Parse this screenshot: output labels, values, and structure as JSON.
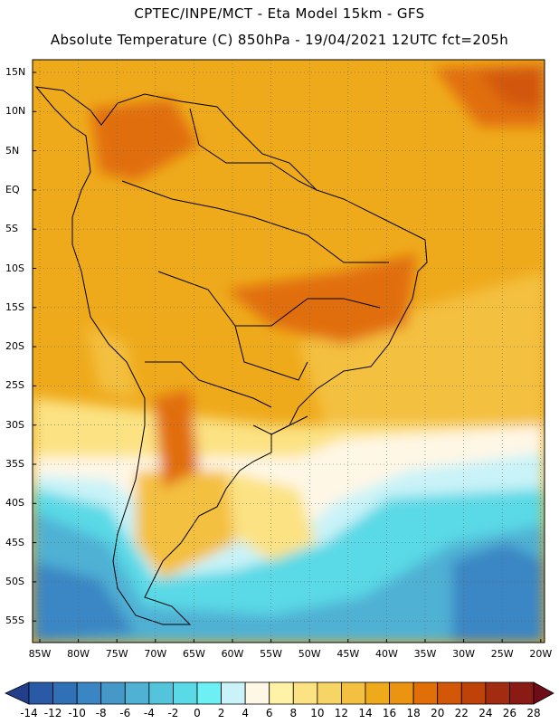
{
  "header": {
    "line1": "CPTEC/INPE/MCT -  Eta Model 15km - GFS",
    "line2": "Absolute Temperature (C) 850hPa - 19/04/2021 12UTC fct=205h"
  },
  "axes": {
    "lat_labels": [
      "15N",
      "10N",
      "5N",
      "EQ",
      "5S",
      "10S",
      "15S",
      "20S",
      "25S",
      "30S",
      "35S",
      "40S",
      "45S",
      "50S",
      "55S"
    ],
    "lon_labels": [
      "85W",
      "80W",
      "75W",
      "70W",
      "65W",
      "60W",
      "55W",
      "50W",
      "45W",
      "40W",
      "35W",
      "30W",
      "25W",
      "20W"
    ]
  },
  "colorbar": {
    "labels": [
      "-14",
      "-12",
      "-10",
      "-8",
      "-6",
      "-4",
      "-2",
      "0",
      "2",
      "4",
      "6",
      "8",
      "10",
      "12",
      "14",
      "16",
      "18",
      "20",
      "22",
      "24",
      "26",
      "28"
    ],
    "colors": [
      "#233f8c",
      "#2a5aa6",
      "#2f70b6",
      "#3a86c4",
      "#4698c9",
      "#4fb1d4",
      "#53c4dc",
      "#5ad9e6",
      "#6cf0f3",
      "#c9f3f8",
      "#fff7e6",
      "#fff1a6",
      "#fce283",
      "#f7d564",
      "#f4c041",
      "#efaa1c",
      "#ea9412",
      "#e16e07",
      "#d25708",
      "#bf4309",
      "#a22c0f",
      "#8a1b14",
      "#6e0d18"
    ]
  },
  "map_fill": {
    "hot": "#d25708",
    "orange": "#e16e07",
    "warm": "#efaa1c",
    "yellow": "#f4c041",
    "pale": "#fce283",
    "cream": "#fff7e6",
    "light_cyan": "#c9f3f8",
    "cyan": "#5ad9e6",
    "teal": "#4fb1d4",
    "blue": "#3a86c4"
  }
}
